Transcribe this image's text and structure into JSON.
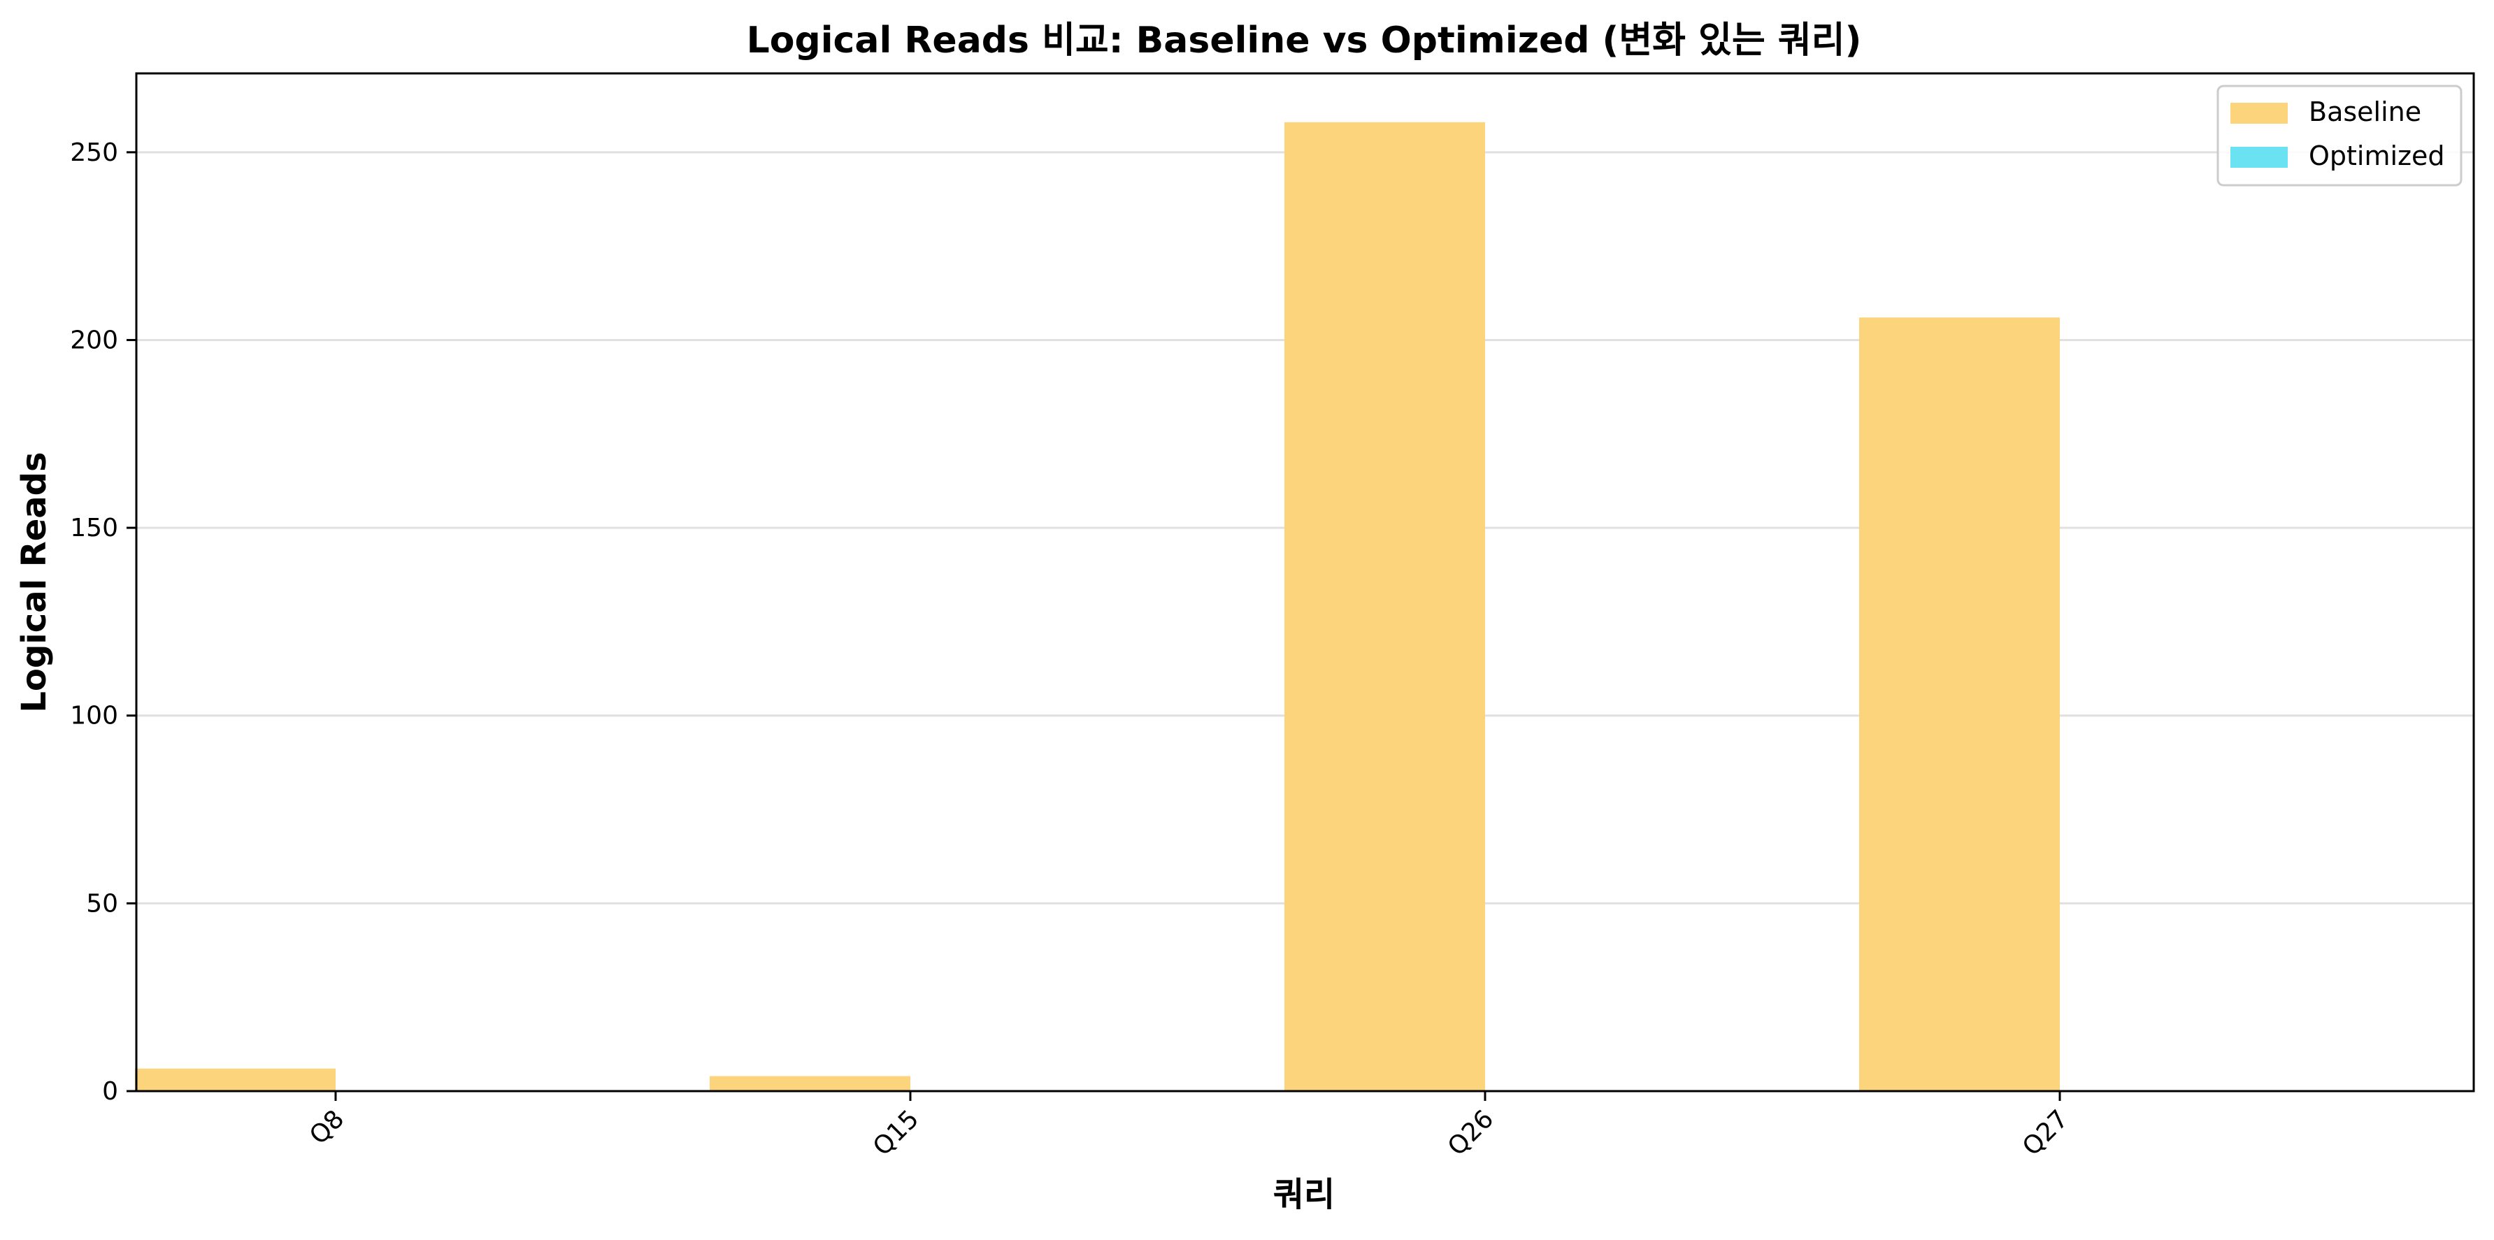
{
  "chart_data": {
    "type": "bar",
    "title": "Logical Reads 비교: Baseline vs Optimized (변화 있는 쿼리)",
    "xlabel": "쿼리",
    "ylabel": "Logical Reads",
    "categories": [
      "Q8",
      "Q15",
      "Q26",
      "Q27"
    ],
    "series": [
      {
        "name": "Baseline",
        "values": [
          6,
          4,
          258,
          206
        ],
        "color": "#fcd47c"
      },
      {
        "name": "Optimized",
        "values": [
          0,
          0,
          0,
          0
        ],
        "color": "#6ae2f2"
      }
    ],
    "ylim": [
      0,
      271
    ],
    "yticks": [
      0,
      50,
      100,
      150,
      200,
      250
    ],
    "grid": "y",
    "legend_position": "top-right",
    "x_tick_rotation": 45
  }
}
